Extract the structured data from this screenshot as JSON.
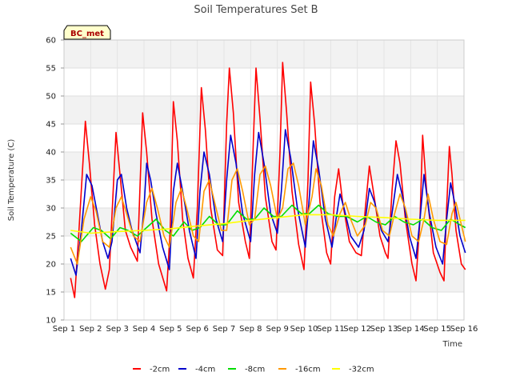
{
  "chart_data": {
    "type": "line",
    "title": "Soil Temperatures Set B",
    "xlabel": "Time",
    "ylabel": "Soil Temperature (C)",
    "badge": "BC_met",
    "ylim": [
      10,
      60
    ],
    "xlim": [
      1,
      16
    ],
    "y_ticks": [
      10,
      15,
      20,
      25,
      30,
      35,
      40,
      45,
      50,
      55,
      60
    ],
    "x_ticks": [
      {
        "v": 1,
        "label": "Sep 1"
      },
      {
        "v": 2,
        "label": "Sep 2"
      },
      {
        "v": 3,
        "label": "Sep 3"
      },
      {
        "v": 4,
        "label": "Sep 4"
      },
      {
        "v": 5,
        "label": "Sep 5"
      },
      {
        "v": 6,
        "label": "Sep 6"
      },
      {
        "v": 7,
        "label": "Sep 7"
      },
      {
        "v": 8,
        "label": "Sep 8"
      },
      {
        "v": 9,
        "label": "Sep 9"
      },
      {
        "v": 10,
        "label": "Sep 10"
      },
      {
        "v": 11,
        "label": "Sep 11"
      },
      {
        "v": 12,
        "label": "Sep 12"
      },
      {
        "v": 13,
        "label": "Sep 13"
      },
      {
        "v": 14,
        "label": "Sep 14"
      },
      {
        "v": 15,
        "label": "Sep 15"
      },
      {
        "v": 16,
        "label": "Sep 16"
      }
    ],
    "grid": true,
    "legend_position": "bottom",
    "series": [
      {
        "name": "-2cm",
        "color": "#ff0000",
        "points": [
          [
            1.25,
            17.5
          ],
          [
            1.4,
            14
          ],
          [
            1.55,
            25
          ],
          [
            1.8,
            45.5
          ],
          [
            1.95,
            38
          ],
          [
            2.15,
            27
          ],
          [
            2.35,
            20
          ],
          [
            2.55,
            15.5
          ],
          [
            2.7,
            19
          ],
          [
            2.95,
            43.5
          ],
          [
            3.1,
            36
          ],
          [
            3.3,
            26
          ],
          [
            3.5,
            23
          ],
          [
            3.75,
            20.5
          ],
          [
            3.95,
            47
          ],
          [
            4.1,
            40
          ],
          [
            4.3,
            28
          ],
          [
            4.55,
            20
          ],
          [
            4.85,
            15.2
          ],
          [
            4.98,
            26
          ],
          [
            5.1,
            49
          ],
          [
            5.25,
            42
          ],
          [
            5.45,
            28
          ],
          [
            5.65,
            21
          ],
          [
            5.85,
            17.5
          ],
          [
            6.0,
            30
          ],
          [
            6.15,
            51.5
          ],
          [
            6.3,
            44
          ],
          [
            6.5,
            30
          ],
          [
            6.75,
            22.5
          ],
          [
            6.95,
            21.5
          ],
          [
            7.1,
            45
          ],
          [
            7.2,
            55
          ],
          [
            7.35,
            47
          ],
          [
            7.55,
            31
          ],
          [
            7.8,
            24
          ],
          [
            7.95,
            21
          ],
          [
            8.1,
            42
          ],
          [
            8.2,
            55
          ],
          [
            8.35,
            46
          ],
          [
            8.55,
            32
          ],
          [
            8.8,
            24
          ],
          [
            8.95,
            22.5
          ],
          [
            9.1,
            40
          ],
          [
            9.2,
            56
          ],
          [
            9.35,
            47
          ],
          [
            9.55,
            33
          ],
          [
            9.8,
            23.5
          ],
          [
            10.0,
            19
          ],
          [
            10.15,
            35
          ],
          [
            10.25,
            52.5
          ],
          [
            10.4,
            45
          ],
          [
            10.6,
            31
          ],
          [
            10.85,
            22
          ],
          [
            11.0,
            20
          ],
          [
            11.15,
            32
          ],
          [
            11.3,
            37
          ],
          [
            11.45,
            31
          ],
          [
            11.7,
            24
          ],
          [
            11.95,
            22
          ],
          [
            12.15,
            21.5
          ],
          [
            12.3,
            30
          ],
          [
            12.45,
            37.5
          ],
          [
            12.6,
            33
          ],
          [
            12.85,
            25
          ],
          [
            13.05,
            22
          ],
          [
            13.15,
            21
          ],
          [
            13.3,
            33
          ],
          [
            13.45,
            42
          ],
          [
            13.6,
            38
          ],
          [
            13.8,
            28
          ],
          [
            14.05,
            20
          ],
          [
            14.2,
            17
          ],
          [
            14.35,
            28
          ],
          [
            14.45,
            43
          ],
          [
            14.6,
            33
          ],
          [
            14.85,
            22
          ],
          [
            15.1,
            18.5
          ],
          [
            15.25,
            17
          ],
          [
            15.35,
            30
          ],
          [
            15.45,
            41
          ],
          [
            15.55,
            36
          ],
          [
            15.7,
            26
          ],
          [
            15.9,
            20
          ],
          [
            16.05,
            19
          ]
        ]
      },
      {
        "name": "-4cm",
        "color": "#0000cc",
        "points": [
          [
            1.25,
            21
          ],
          [
            1.45,
            18
          ],
          [
            1.65,
            26
          ],
          [
            1.85,
            36
          ],
          [
            2.05,
            34
          ],
          [
            2.25,
            29
          ],
          [
            2.45,
            24
          ],
          [
            2.65,
            21
          ],
          [
            2.8,
            24
          ],
          [
            3.0,
            35
          ],
          [
            3.15,
            36
          ],
          [
            3.35,
            30
          ],
          [
            3.55,
            26
          ],
          [
            3.85,
            22
          ],
          [
            4.0,
            30
          ],
          [
            4.1,
            38
          ],
          [
            4.25,
            35
          ],
          [
            4.45,
            29
          ],
          [
            4.7,
            23
          ],
          [
            4.95,
            19
          ],
          [
            5.1,
            33
          ],
          [
            5.25,
            38
          ],
          [
            5.45,
            33
          ],
          [
            5.7,
            26
          ],
          [
            5.95,
            21
          ],
          [
            6.1,
            33
          ],
          [
            6.25,
            40
          ],
          [
            6.45,
            36
          ],
          [
            6.7,
            28
          ],
          [
            6.95,
            24
          ],
          [
            7.1,
            35
          ],
          [
            7.25,
            43
          ],
          [
            7.45,
            38
          ],
          [
            7.7,
            29
          ],
          [
            8.0,
            24
          ],
          [
            8.15,
            36
          ],
          [
            8.3,
            43.5
          ],
          [
            8.5,
            38
          ],
          [
            8.75,
            29
          ],
          [
            9.0,
            25.5
          ],
          [
            9.15,
            33
          ],
          [
            9.3,
            44
          ],
          [
            9.5,
            39
          ],
          [
            9.75,
            30
          ],
          [
            10.05,
            23
          ],
          [
            10.2,
            32
          ],
          [
            10.35,
            42
          ],
          [
            10.55,
            37
          ],
          [
            10.8,
            28
          ],
          [
            11.05,
            23
          ],
          [
            11.2,
            28
          ],
          [
            11.35,
            32.5
          ],
          [
            11.5,
            30
          ],
          [
            11.75,
            25
          ],
          [
            12.05,
            23
          ],
          [
            12.25,
            26
          ],
          [
            12.45,
            33.5
          ],
          [
            12.65,
            31
          ],
          [
            12.9,
            26
          ],
          [
            13.15,
            24
          ],
          [
            13.3,
            29
          ],
          [
            13.5,
            36
          ],
          [
            13.7,
            32
          ],
          [
            13.95,
            25
          ],
          [
            14.2,
            21
          ],
          [
            14.35,
            28
          ],
          [
            14.5,
            36
          ],
          [
            14.7,
            29
          ],
          [
            14.95,
            23
          ],
          [
            15.2,
            20
          ],
          [
            15.35,
            28
          ],
          [
            15.5,
            34.5
          ],
          [
            15.65,
            31
          ],
          [
            15.85,
            25
          ],
          [
            16.05,
            22
          ]
        ]
      },
      {
        "name": "-8cm",
        "color": "#00dd00",
        "points": [
          [
            1.25,
            25.5
          ],
          [
            1.65,
            24
          ],
          [
            2.1,
            26.5
          ],
          [
            2.4,
            26
          ],
          [
            2.75,
            24.5
          ],
          [
            3.1,
            26.5
          ],
          [
            3.4,
            26
          ],
          [
            3.75,
            25
          ],
          [
            4.1,
            26.5
          ],
          [
            4.45,
            28
          ],
          [
            4.8,
            26
          ],
          [
            5.1,
            25
          ],
          [
            5.5,
            27.5
          ],
          [
            5.8,
            26
          ],
          [
            6.1,
            26.5
          ],
          [
            6.45,
            28.5
          ],
          [
            6.8,
            27
          ],
          [
            7.1,
            27
          ],
          [
            7.5,
            29.5
          ],
          [
            7.85,
            28
          ],
          [
            8.15,
            28
          ],
          [
            8.5,
            30
          ],
          [
            8.85,
            28.5
          ],
          [
            9.15,
            28.5
          ],
          [
            9.55,
            30.5
          ],
          [
            9.9,
            29
          ],
          [
            10.2,
            29
          ],
          [
            10.55,
            30.5
          ],
          [
            10.9,
            29
          ],
          [
            11.25,
            28.5
          ],
          [
            11.6,
            28.5
          ],
          [
            12.0,
            27.5
          ],
          [
            12.35,
            28.5
          ],
          [
            12.7,
            27.5
          ],
          [
            13.05,
            27
          ],
          [
            13.4,
            28.5
          ],
          [
            13.75,
            27.5
          ],
          [
            14.1,
            27
          ],
          [
            14.45,
            28
          ],
          [
            14.8,
            26.5
          ],
          [
            15.15,
            26
          ],
          [
            15.5,
            28
          ],
          [
            15.85,
            27
          ],
          [
            16.05,
            26.5
          ]
        ]
      },
      {
        "name": "-16cm",
        "color": "#ff9900",
        "points": [
          [
            1.25,
            23
          ],
          [
            1.5,
            20
          ],
          [
            1.75,
            28
          ],
          [
            2.0,
            32
          ],
          [
            2.2,
            29.5
          ],
          [
            2.45,
            24
          ],
          [
            2.7,
            23
          ],
          [
            2.95,
            30
          ],
          [
            3.15,
            32
          ],
          [
            3.35,
            29
          ],
          [
            3.6,
            25
          ],
          [
            3.85,
            24
          ],
          [
            4.1,
            31
          ],
          [
            4.3,
            33.5
          ],
          [
            4.5,
            30
          ],
          [
            4.75,
            25
          ],
          [
            4.95,
            23
          ],
          [
            5.2,
            31
          ],
          [
            5.4,
            33.5
          ],
          [
            5.6,
            30
          ],
          [
            5.85,
            25
          ],
          [
            6.05,
            24
          ],
          [
            6.25,
            33
          ],
          [
            6.45,
            35
          ],
          [
            6.65,
            31
          ],
          [
            6.9,
            26
          ],
          [
            7.1,
            26
          ],
          [
            7.3,
            35
          ],
          [
            7.5,
            37
          ],
          [
            7.7,
            33
          ],
          [
            7.95,
            27
          ],
          [
            8.15,
            28
          ],
          [
            8.35,
            36
          ],
          [
            8.55,
            37.5
          ],
          [
            8.75,
            34
          ],
          [
            9.0,
            28
          ],
          [
            9.2,
            30
          ],
          [
            9.4,
            37
          ],
          [
            9.6,
            38
          ],
          [
            9.8,
            34
          ],
          [
            10.05,
            27
          ],
          [
            10.3,
            32
          ],
          [
            10.45,
            37
          ],
          [
            10.65,
            34
          ],
          [
            10.9,
            27
          ],
          [
            11.1,
            25
          ],
          [
            11.35,
            29
          ],
          [
            11.55,
            31
          ],
          [
            11.75,
            28
          ],
          [
            12.0,
            25
          ],
          [
            12.3,
            27
          ],
          [
            12.5,
            31
          ],
          [
            12.7,
            30
          ],
          [
            12.95,
            26
          ],
          [
            13.2,
            25
          ],
          [
            13.4,
            29
          ],
          [
            13.6,
            32.5
          ],
          [
            13.8,
            30
          ],
          [
            14.05,
            25
          ],
          [
            14.3,
            24
          ],
          [
            14.5,
            28
          ],
          [
            14.65,
            32.5
          ],
          [
            14.85,
            28
          ],
          [
            15.1,
            24
          ],
          [
            15.35,
            23.5
          ],
          [
            15.55,
            29
          ],
          [
            15.7,
            31
          ],
          [
            15.9,
            27
          ],
          [
            16.05,
            24
          ]
        ]
      },
      {
        "name": "-32cm",
        "color": "#ffff00",
        "points": [
          [
            1.25,
            26
          ],
          [
            2.0,
            25.5
          ],
          [
            3.0,
            25.8
          ],
          [
            4.0,
            26
          ],
          [
            5.0,
            26.3
          ],
          [
            6.0,
            26.8
          ],
          [
            7.0,
            27.2
          ],
          [
            8.0,
            27.8
          ],
          [
            9.0,
            28.3
          ],
          [
            10.0,
            28.8
          ],
          [
            11.0,
            28.8
          ],
          [
            12.0,
            28.5
          ],
          [
            13.0,
            28.3
          ],
          [
            14.0,
            28.0
          ],
          [
            15.0,
            27.8
          ],
          [
            16.05,
            27.8
          ]
        ]
      }
    ]
  }
}
